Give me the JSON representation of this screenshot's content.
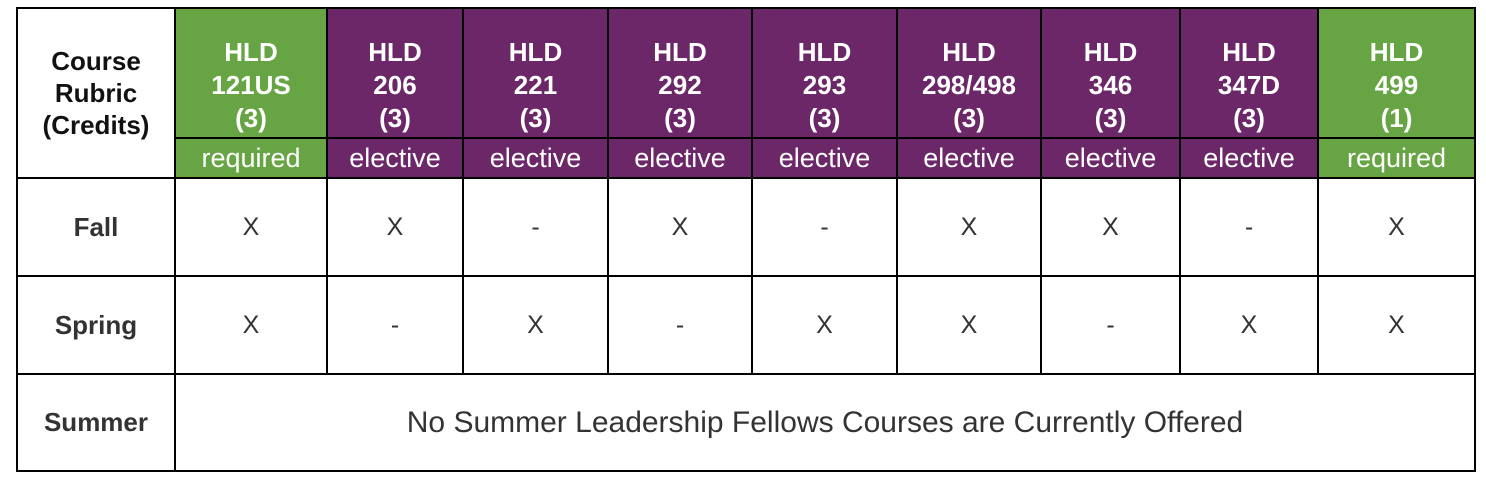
{
  "header": {
    "corner_label": [
      "Course",
      "Rubric",
      "(Credits)"
    ],
    "courses": [
      {
        "rubric": "HLD",
        "number": "121US",
        "credits": "(3)",
        "type": "required",
        "color": "#67a443"
      },
      {
        "rubric": "HLD",
        "number": "206",
        "credits": "(3)",
        "type": "elective",
        "color": "#6b2768"
      },
      {
        "rubric": "HLD",
        "number": "221",
        "credits": "(3)",
        "type": "elective",
        "color": "#6b2768"
      },
      {
        "rubric": "HLD",
        "number": "292",
        "credits": "(3)",
        "type": "elective",
        "color": "#6b2768"
      },
      {
        "rubric": "HLD",
        "number": "293",
        "credits": "(3)",
        "type": "elective",
        "color": "#6b2768"
      },
      {
        "rubric": "HLD",
        "number": "298/498",
        "credits": "(3)",
        "type": "elective",
        "color": "#6b2768"
      },
      {
        "rubric": "HLD",
        "number": "346",
        "credits": "(3)",
        "type": "elective",
        "color": "#6b2768"
      },
      {
        "rubric": "HLD",
        "number": "347D",
        "credits": "(3)",
        "type": "elective",
        "color": "#6b2768"
      },
      {
        "rubric": "HLD",
        "number": "499",
        "credits": "(1)",
        "type": "required",
        "color": "#67a443"
      }
    ]
  },
  "rows": [
    {
      "term": "Fall",
      "values": [
        "X",
        "X",
        "-",
        "X",
        "-",
        "X",
        "X",
        "-",
        "X"
      ]
    },
    {
      "term": "Spring",
      "values": [
        "X",
        "-",
        "X",
        "-",
        "X",
        "X",
        "-",
        "X",
        "X"
      ]
    }
  ],
  "summer": {
    "term": "Summer",
    "message": "No Summer Leadership Fellows Courses are Currently Offered"
  }
}
